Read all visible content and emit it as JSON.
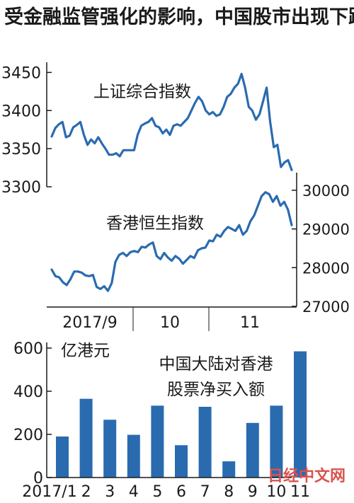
{
  "title": "受金融监管强化的影响，中国股市出现下跌",
  "watermark": "日经中文网",
  "colors": {
    "line": "#2a6bb0",
    "bar": "#2a6bb0",
    "axis": "#1a1a1a",
    "watermark": "#d9534f"
  },
  "chart_data": [
    {
      "type": "line",
      "title": "",
      "x_tick_labels": [
        "2017/9",
        "10",
        "11"
      ],
      "series": [
        {
          "name": "上证综合指数",
          "axis": "left",
          "ylim": [
            3300,
            3455
          ],
          "yticks": [
            3300,
            3350,
            3400,
            3450
          ],
          "values": [
            3366,
            3377,
            3382,
            3385,
            3365,
            3367,
            3378,
            3381,
            3385,
            3368,
            3355,
            3362,
            3357,
            3365,
            3357,
            3350,
            3342,
            3342,
            3344,
            3340,
            3348,
            3348,
            3348,
            3348,
            3368,
            3380,
            3383,
            3385,
            3390,
            3380,
            3378,
            3370,
            3375,
            3368,
            3380,
            3382,
            3380,
            3385,
            3390,
            3400,
            3410,
            3418,
            3412,
            3400,
            3395,
            3398,
            3393,
            3395,
            3405,
            3418,
            3422,
            3430,
            3435,
            3448,
            3430,
            3405,
            3400,
            3388,
            3395,
            3412,
            3430,
            3385,
            3352,
            3355,
            3326,
            3332,
            3335,
            3322
          ]
        },
        {
          "name": "香港恒生指数",
          "axis": "right",
          "ylim": [
            27000,
            30200
          ],
          "yticks": [
            27000,
            28000,
            29000,
            30000
          ],
          "values": [
            27950,
            27780,
            27750,
            27620,
            27550,
            27700,
            27900,
            27900,
            27870,
            27800,
            27780,
            27810,
            27500,
            27450,
            27520,
            27400,
            27600,
            28150,
            28330,
            28380,
            28300,
            28400,
            28430,
            28400,
            28540,
            28520,
            28600,
            28650,
            28300,
            28220,
            28380,
            28260,
            28180,
            28300,
            28230,
            28100,
            28200,
            28300,
            28250,
            28450,
            28500,
            28520,
            28700,
            28680,
            28850,
            28800,
            28950,
            29050,
            29000,
            28950,
            29100,
            28850,
            28950,
            29200,
            29350,
            29600,
            29850,
            29950,
            29900,
            29700,
            29850,
            29600,
            29700,
            29500,
            29100
          ]
        }
      ]
    },
    {
      "type": "bar",
      "title": "中国大陆对香港股票净买入额",
      "ylabel": "亿港元",
      "ylim": [
        0,
        600
      ],
      "yticks": [
        0,
        200,
        400,
        600
      ],
      "categories": [
        "2017/1",
        "2",
        "3",
        "4",
        "5",
        "6",
        "7",
        "8",
        "9",
        "10",
        "11"
      ],
      "values": [
        190,
        365,
        268,
        198,
        333,
        150,
        328,
        75,
        253,
        333,
        585
      ]
    }
  ]
}
